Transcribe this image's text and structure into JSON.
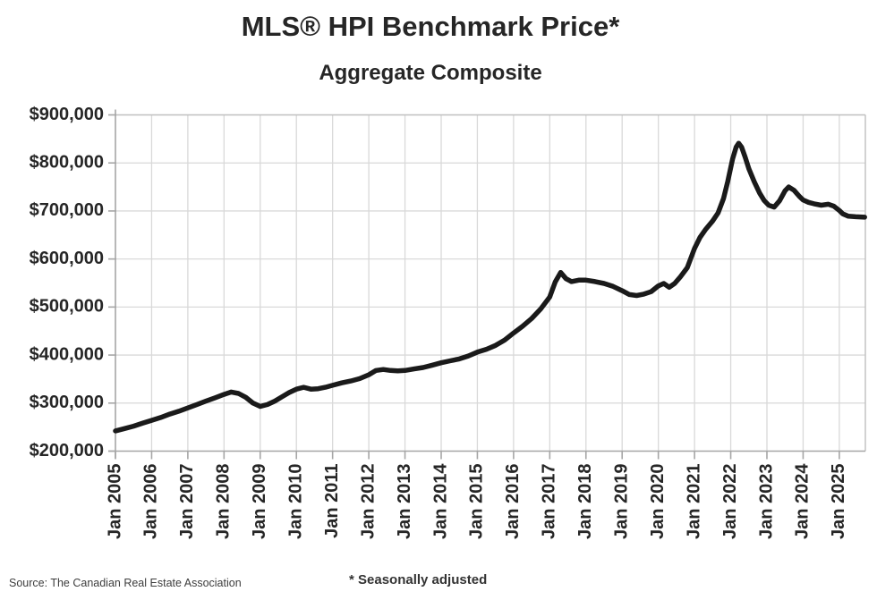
{
  "header": {
    "title": "MLS® HPI Benchmark Price*",
    "subtitle": "Aggregate Composite"
  },
  "footer": {
    "source": "Source: The Canadian Real Estate Association",
    "note": "* Seasonally adjusted"
  },
  "colors": {
    "line": "#1a1a1a",
    "grid": "#d9d9d9",
    "border": "#bfbfbf",
    "axis": "#a6a6a6",
    "text": "#262626"
  },
  "chart_data": {
    "type": "line",
    "title": "MLS® HPI Benchmark Price*",
    "subtitle": "Aggregate Composite",
    "xlabel": "",
    "ylabel": "",
    "xlim": [
      2005,
      2025.72
    ],
    "ylim": [
      200000,
      900000
    ],
    "grid": true,
    "legend": "none",
    "y_ticks": [
      200000,
      300000,
      400000,
      500000,
      600000,
      700000,
      800000,
      900000
    ],
    "y_tick_labels": [
      "$200,000",
      "$300,000",
      "$400,000",
      "$500,000",
      "$600,000",
      "$700,000",
      "$800,000",
      "$900,000"
    ],
    "x_ticks": [
      2005,
      2006,
      2007,
      2008,
      2009,
      2010,
      2011,
      2012,
      2013,
      2014,
      2015,
      2016,
      2017,
      2018,
      2019,
      2020,
      2021,
      2022,
      2023,
      2024,
      2025
    ],
    "x_tick_labels": [
      "Jan 2005",
      "Jan 2006",
      "Jan 2007",
      "Jan 2008",
      "Jan 2009",
      "Jan 2010",
      "Jan 2011",
      "Jan 2012",
      "Jan 2013",
      "Jan 2014",
      "Jan 2015",
      "Jan 2016",
      "Jan 2017",
      "Jan 2018",
      "Jan 2019",
      "Jan 2020",
      "Jan 2021",
      "Jan 2022",
      "Jan 2023",
      "Jan 2024",
      "Jan 2025"
    ],
    "series": [
      {
        "name": "Aggregate Composite benchmark price (seasonally adjusted)",
        "points": [
          [
            2005.0,
            242000
          ],
          [
            2005.25,
            247000
          ],
          [
            2005.5,
            252000
          ],
          [
            2005.75,
            258000
          ],
          [
            2006.0,
            264000
          ],
          [
            2006.25,
            270000
          ],
          [
            2006.5,
            277000
          ],
          [
            2006.75,
            283000
          ],
          [
            2007.0,
            290000
          ],
          [
            2007.25,
            297000
          ],
          [
            2007.5,
            304000
          ],
          [
            2007.75,
            311000
          ],
          [
            2008.0,
            318000
          ],
          [
            2008.2,
            323000
          ],
          [
            2008.4,
            320000
          ],
          [
            2008.6,
            312000
          ],
          [
            2008.8,
            300000
          ],
          [
            2009.0,
            293000
          ],
          [
            2009.2,
            297000
          ],
          [
            2009.4,
            304000
          ],
          [
            2009.6,
            313000
          ],
          [
            2009.8,
            322000
          ],
          [
            2010.0,
            329000
          ],
          [
            2010.2,
            333000
          ],
          [
            2010.4,
            329000
          ],
          [
            2010.6,
            330000
          ],
          [
            2010.8,
            333000
          ],
          [
            2011.0,
            337000
          ],
          [
            2011.25,
            342000
          ],
          [
            2011.5,
            346000
          ],
          [
            2011.75,
            351000
          ],
          [
            2012.0,
            359000
          ],
          [
            2012.2,
            368000
          ],
          [
            2012.4,
            370000
          ],
          [
            2012.6,
            368000
          ],
          [
            2012.8,
            367000
          ],
          [
            2013.0,
            368000
          ],
          [
            2013.25,
            371000
          ],
          [
            2013.5,
            374000
          ],
          [
            2013.75,
            379000
          ],
          [
            2014.0,
            384000
          ],
          [
            2014.25,
            388000
          ],
          [
            2014.5,
            392000
          ],
          [
            2014.75,
            398000
          ],
          [
            2015.0,
            406000
          ],
          [
            2015.25,
            412000
          ],
          [
            2015.5,
            420000
          ],
          [
            2015.75,
            431000
          ],
          [
            2016.0,
            446000
          ],
          [
            2016.25,
            460000
          ],
          [
            2016.5,
            476000
          ],
          [
            2016.75,
            496000
          ],
          [
            2017.0,
            521000
          ],
          [
            2017.15,
            552000
          ],
          [
            2017.3,
            572000
          ],
          [
            2017.45,
            559000
          ],
          [
            2017.6,
            553000
          ],
          [
            2017.8,
            556000
          ],
          [
            2018.0,
            556000
          ],
          [
            2018.25,
            553000
          ],
          [
            2018.5,
            549000
          ],
          [
            2018.75,
            543000
          ],
          [
            2019.0,
            534000
          ],
          [
            2019.2,
            526000
          ],
          [
            2019.4,
            524000
          ],
          [
            2019.6,
            527000
          ],
          [
            2019.8,
            532000
          ],
          [
            2020.0,
            544000
          ],
          [
            2020.15,
            549000
          ],
          [
            2020.3,
            541000
          ],
          [
            2020.45,
            549000
          ],
          [
            2020.6,
            562000
          ],
          [
            2020.8,
            582000
          ],
          [
            2021.0,
            622000
          ],
          [
            2021.15,
            645000
          ],
          [
            2021.3,
            661000
          ],
          [
            2021.5,
            679000
          ],
          [
            2021.65,
            696000
          ],
          [
            2021.8,
            726000
          ],
          [
            2021.92,
            762000
          ],
          [
            2022.05,
            808000
          ],
          [
            2022.15,
            833000
          ],
          [
            2022.22,
            841000
          ],
          [
            2022.3,
            833000
          ],
          [
            2022.4,
            812000
          ],
          [
            2022.5,
            788000
          ],
          [
            2022.65,
            761000
          ],
          [
            2022.8,
            737000
          ],
          [
            2022.92,
            722000
          ],
          [
            2023.05,
            712000
          ],
          [
            2023.2,
            708000
          ],
          [
            2023.35,
            721000
          ],
          [
            2023.5,
            742000
          ],
          [
            2023.6,
            750000
          ],
          [
            2023.75,
            743000
          ],
          [
            2023.9,
            730000
          ],
          [
            2024.0,
            723000
          ],
          [
            2024.15,
            718000
          ],
          [
            2024.3,
            715000
          ],
          [
            2024.5,
            712000
          ],
          [
            2024.7,
            714000
          ],
          [
            2024.85,
            710000
          ],
          [
            2025.0,
            701000
          ],
          [
            2025.1,
            694000
          ],
          [
            2025.25,
            689000
          ],
          [
            2025.45,
            688000
          ],
          [
            2025.7,
            687000
          ]
        ]
      }
    ]
  }
}
